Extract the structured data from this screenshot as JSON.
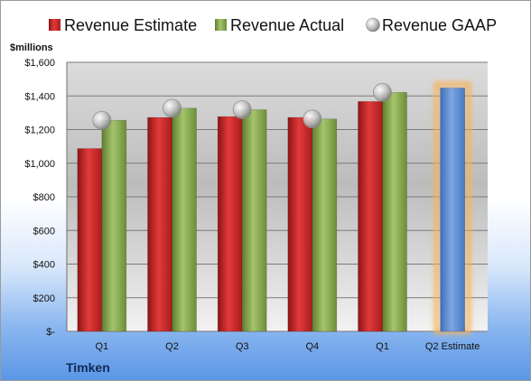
{
  "chart_data": {
    "type": "bar",
    "title": "",
    "company": "Timken",
    "ylabel": "$millions",
    "ylim": [
      0,
      1600
    ],
    "y_ticks": [
      {
        "value": 0,
        "label": "$-"
      },
      {
        "value": 200,
        "label": "$200"
      },
      {
        "value": 400,
        "label": "$400"
      },
      {
        "value": 600,
        "label": "$600"
      },
      {
        "value": 800,
        "label": "$800"
      },
      {
        "value": 1000,
        "label": "$1,000"
      },
      {
        "value": 1200,
        "label": "$1,200"
      },
      {
        "value": 1400,
        "label": "$1,400"
      },
      {
        "value": 1600,
        "label": "$1,600"
      }
    ],
    "categories": [
      "Q1",
      "Q2",
      "Q3",
      "Q4",
      "Q1",
      "Q2 Estimate"
    ],
    "legend_position": "top",
    "grid": true,
    "series": [
      {
        "name": "Revenue Estimate",
        "type": "bar",
        "color": "#d0282a",
        "values": [
          1087,
          1272,
          1277,
          1272,
          1367,
          null
        ]
      },
      {
        "name": "Revenue Actual",
        "type": "bar",
        "color": "#8fb159",
        "values": [
          1255,
          1327,
          1318,
          1263,
          1421,
          null
        ]
      },
      {
        "name": "Revenue GAAP",
        "type": "marker",
        "color": "#bfbfbf",
        "values": [
          1255,
          1327,
          1318,
          1263,
          1421,
          null
        ]
      },
      {
        "name": "Q2 Estimate",
        "type": "bar",
        "color": "#5b8fd4",
        "highlight": "#f7b25a",
        "values": [
          null,
          null,
          null,
          null,
          null,
          1447
        ]
      }
    ]
  }
}
